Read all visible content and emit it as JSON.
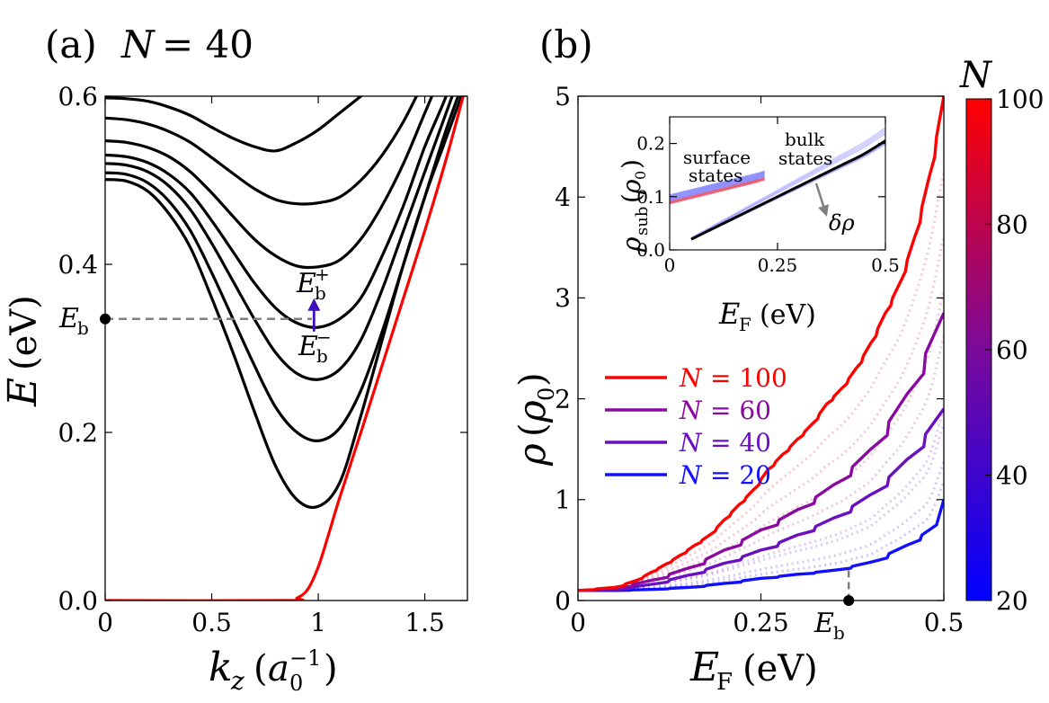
{
  "chart_data": [
    {
      "type": "line",
      "panel_label": "(a)",
      "title_var": "N",
      "title_eq": "= 40",
      "xlabel": "k_z (a0^-1)",
      "ylabel": "E (eV)",
      "xlim": [
        0,
        1.7
      ],
      "ylim": [
        0,
        0.6
      ],
      "xticks": [
        0,
        0.5,
        1,
        1.5
      ],
      "xtick_labels": [
        "0",
        "0.5",
        "1",
        "1.5"
      ],
      "yticks": [
        0,
        0.2,
        0.4,
        0.6
      ],
      "ytick_labels": [
        "0.0",
        "0.2",
        "0.4",
        "0.6"
      ],
      "surface_band": {
        "color": "#ff0000",
        "x": [
          0,
          0.85,
          0.9,
          0.95,
          1.0,
          1.05,
          1.1,
          1.2,
          1.3,
          1.4,
          1.5,
          1.6,
          1.68
        ],
        "y": [
          0,
          0.0,
          0.003,
          0.013,
          0.04,
          0.08,
          0.122,
          0.2,
          0.28,
          0.36,
          0.44,
          0.525,
          0.6
        ]
      },
      "bulk_bands": {
        "color": "#000000",
        "x": [
          0,
          0.1,
          0.2,
          0.3,
          0.4,
          0.5,
          0.6,
          0.7,
          0.8,
          0.9,
          1.0,
          1.1,
          1.2,
          1.3,
          1.4,
          1.5,
          1.6,
          1.7
        ],
        "series": [
          {
            "name": "band-1",
            "y": [
              0.501,
              0.499,
              0.487,
              0.46,
              0.42,
              0.36,
              0.295,
              0.225,
              0.16,
              0.12,
              0.112,
              0.14,
              0.22,
              0.31,
              0.4,
              0.48,
              0.55,
              0.62
            ]
          },
          {
            "name": "band-2",
            "y": [
              0.509,
              0.507,
              0.497,
              0.475,
              0.44,
              0.39,
              0.335,
              0.28,
              0.23,
              0.2,
              0.19,
              0.205,
              0.25,
              0.32,
              0.4,
              0.48,
              0.56,
              0.63
            ]
          },
          {
            "name": "band-3",
            "y": [
              0.52,
              0.518,
              0.51,
              0.493,
              0.465,
              0.425,
              0.38,
              0.335,
              0.295,
              0.27,
              0.263,
              0.275,
              0.31,
              0.37,
              0.44,
              0.51,
              0.58,
              0.65
            ]
          },
          {
            "name": "band-4",
            "y": [
              0.53,
              0.528,
              0.521,
              0.507,
              0.485,
              0.452,
              0.415,
              0.378,
              0.348,
              0.33,
              0.325,
              0.335,
              0.36,
              0.41,
              0.47,
              0.54,
              0.6,
              0.67
            ]
          },
          {
            "name": "band-5",
            "y": [
              0.547,
              0.545,
              0.539,
              0.528,
              0.51,
              0.485,
              0.457,
              0.43,
              0.41,
              0.398,
              0.397,
              0.405,
              0.43,
              0.47,
              0.52,
              0.58,
              0.64,
              0.7
            ]
          },
          {
            "name": "band-6",
            "y": [
              0.574,
              0.572,
              0.567,
              0.558,
              0.545,
              0.527,
              0.508,
              0.49,
              0.477,
              0.472,
              0.473,
              0.48,
              0.5,
              0.53,
              0.57,
              0.62,
              0.67,
              0.72
            ]
          },
          {
            "name": "band-7",
            "y": [
              0.598,
              0.597,
              0.594,
              0.587,
              0.577,
              0.563,
              0.55,
              0.54,
              0.535,
              0.545,
              0.56,
              0.58,
              0.6,
              0.62,
              0.65,
              0.68,
              0.71,
              0.74
            ]
          }
        ]
      },
      "annotations": {
        "Eb_value": 0.335,
        "Eb_label": "E_b",
        "Eb_plus": "E_b^+",
        "Eb_minus": "E_b^-",
        "arrow_color": "#3d10b8",
        "arrow_k": 0.98,
        "dash_end_k": 0.97
      }
    },
    {
      "type": "line",
      "panel_label": "(b)",
      "xlabel": "E_F (eV)",
      "ylabel": "rho (rho0)",
      "xlim": [
        0,
        0.5
      ],
      "ylim": [
        0,
        5
      ],
      "xticks": [
        0,
        0.25,
        0.5
      ],
      "xtick_labels": [
        "0",
        "0.25",
        "0.5"
      ],
      "yticks": [
        0,
        1,
        2,
        3,
        4,
        5
      ],
      "ytick_labels": [
        "0",
        "1",
        "2",
        "3",
        "4",
        "5"
      ],
      "Eb_value": 0.37,
      "Eb_label": "E_b",
      "series": [
        {
          "name": "N = 100",
          "N": 100,
          "color": "#ff0000",
          "x": [
            0,
            0.05,
            0.08,
            0.1,
            0.12,
            0.14,
            0.16,
            0.18,
            0.2,
            0.22,
            0.24,
            0.26,
            0.28,
            0.3,
            0.32,
            0.34,
            0.36,
            0.38,
            0.4,
            0.42,
            0.44,
            0.46,
            0.48,
            0.5
          ],
          "y": [
            0.1,
            0.13,
            0.2,
            0.28,
            0.36,
            0.45,
            0.55,
            0.65,
            0.8,
            0.95,
            1.1,
            1.3,
            1.45,
            1.6,
            1.75,
            1.95,
            2.1,
            2.3,
            2.55,
            2.85,
            3.15,
            3.6,
            4.2,
            5.0
          ]
        },
        {
          "name": "N = 60",
          "N": 60,
          "color": "#8a0aa0",
          "x": [
            0,
            0.05,
            0.1,
            0.15,
            0.2,
            0.25,
            0.3,
            0.35,
            0.4,
            0.45,
            0.5
          ],
          "y": [
            0.1,
            0.12,
            0.2,
            0.32,
            0.5,
            0.7,
            0.9,
            1.15,
            1.5,
            2.05,
            2.85
          ]
        },
        {
          "name": "N = 40",
          "N": 40,
          "color": "#6a10c0",
          "x": [
            0,
            0.05,
            0.1,
            0.15,
            0.2,
            0.25,
            0.3,
            0.35,
            0.4,
            0.45,
            0.5
          ],
          "y": [
            0.1,
            0.11,
            0.16,
            0.25,
            0.37,
            0.5,
            0.65,
            0.82,
            1.05,
            1.4,
            1.9
          ]
        },
        {
          "name": "N = 20",
          "N": 20,
          "color": "#1010ff",
          "x": [
            0,
            0.05,
            0.1,
            0.15,
            0.2,
            0.25,
            0.3,
            0.35,
            0.4,
            0.45,
            0.49,
            0.5
          ],
          "y": [
            0.1,
            0.1,
            0.11,
            0.13,
            0.17,
            0.22,
            0.26,
            0.3,
            0.38,
            0.55,
            0.75,
            1.0
          ]
        }
      ],
      "legend_prefix": "N",
      "legend_values": [
        "= 100",
        "= 60",
        "= 40",
        "= 20"
      ],
      "colorbar": {
        "label": "N",
        "range": [
          20,
          100
        ],
        "ticks": [
          20,
          40,
          60,
          80,
          100
        ],
        "ticks_labels": [
          "20",
          "40",
          "60",
          "80",
          "100"
        ],
        "color_low": "#0000ff",
        "color_high": "#ff0000"
      },
      "inset": {
        "xlabel": "E_F (eV)",
        "ylabel": "rho_sub (rho0)",
        "xlim": [
          0,
          0.5
        ],
        "ylim": [
          0,
          0.25
        ],
        "xticks": [
          0,
          0.25,
          0.5
        ],
        "xtick_labels": [
          "0",
          "0.25",
          "0.5"
        ],
        "yticks": [
          0,
          0.1,
          0.2
        ],
        "ytick_labels": [
          "0.0",
          "0.1",
          "0.2"
        ],
        "surface_text_1": "surface",
        "surface_text_2": "states",
        "bulk_text_1": "bulk",
        "bulk_text_2": "states",
        "delta_label": "δρ",
        "surface_x": [
          0,
          0.05,
          0.1,
          0.15,
          0.2,
          0.22
        ],
        "surface_y": [
          0.095,
          0.105,
          0.115,
          0.125,
          0.135,
          0.14
        ],
        "bulk_x": [
          0.05,
          0.1,
          0.15,
          0.2,
          0.25,
          0.3,
          0.35,
          0.4,
          0.45,
          0.5
        ],
        "bulk_y": [
          0.02,
          0.04,
          0.06,
          0.08,
          0.1,
          0.12,
          0.14,
          0.16,
          0.18,
          0.205
        ]
      }
    }
  ]
}
